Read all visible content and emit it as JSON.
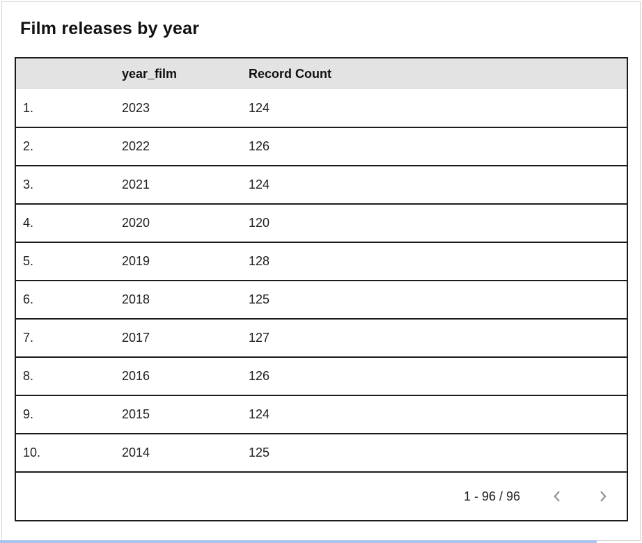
{
  "card": {
    "title": "Film releases by year"
  },
  "table": {
    "columns": [
      {
        "key": "index",
        "label": ""
      },
      {
        "key": "year_film",
        "label": "year_film"
      },
      {
        "key": "record_count",
        "label": "Record Count"
      }
    ],
    "rows": [
      {
        "index": "1.",
        "year_film": "2023",
        "record_count": "124"
      },
      {
        "index": "2.",
        "year_film": "2022",
        "record_count": "126"
      },
      {
        "index": "3.",
        "year_film": "2021",
        "record_count": "124"
      },
      {
        "index": "4.",
        "year_film": "2020",
        "record_count": "120"
      },
      {
        "index": "5.",
        "year_film": "2019",
        "record_count": "128"
      },
      {
        "index": "6.",
        "year_film": "2018",
        "record_count": "125"
      },
      {
        "index": "7.",
        "year_film": "2017",
        "record_count": "127"
      },
      {
        "index": "8.",
        "year_film": "2016",
        "record_count": "126"
      },
      {
        "index": "9.",
        "year_film": "2015",
        "record_count": "124"
      },
      {
        "index": "10.",
        "year_film": "2014",
        "record_count": "125"
      }
    ]
  },
  "pagination": {
    "range_label": "1 - 96 / 96",
    "prev_icon": "chevron-left",
    "next_icon": "chevron-right"
  },
  "colors": {
    "header_bg": "#e3e3e3",
    "table_border": "#1b1b1b",
    "card_border": "#d6d6d6",
    "text": "#202124",
    "chevron": "#919191",
    "bottom_strip": "#a9c4ec"
  },
  "chart_data": {
    "type": "table",
    "title": "Film releases by year",
    "columns": [
      "year_film",
      "Record Count"
    ],
    "rows": [
      [
        2023,
        124
      ],
      [
        2022,
        126
      ],
      [
        2021,
        124
      ],
      [
        2020,
        120
      ],
      [
        2019,
        128
      ],
      [
        2018,
        125
      ],
      [
        2017,
        127
      ],
      [
        2016,
        126
      ],
      [
        2015,
        124
      ],
      [
        2014,
        125
      ]
    ],
    "row_range_shown": "1 - 96 / 96",
    "total_rows": 96,
    "sorted_by": "year_film descending"
  }
}
